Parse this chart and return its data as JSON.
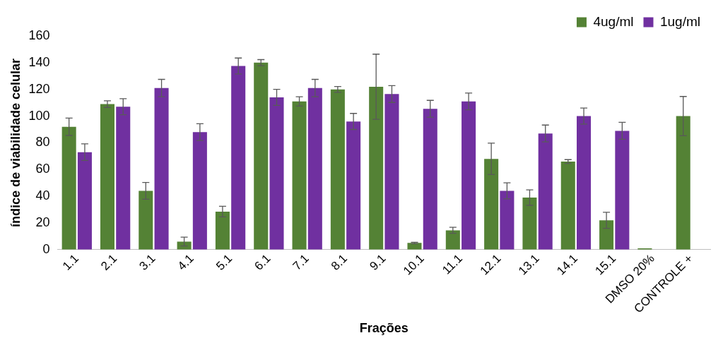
{
  "chart_data": {
    "type": "bar",
    "xlabel": "Frações",
    "ylabel": "índice de viabilidade celular",
    "categories": [
      "1.1",
      "2.1",
      "3.1",
      "4.1",
      "5.1",
      "6.1",
      "7.1",
      "8.1",
      "9.1",
      "10.1",
      "11.1",
      "12.1",
      "13.1",
      "14.1",
      "15.1",
      "DMSO 20%",
      "CONTROLE +"
    ],
    "series": [
      {
        "name": "4ug/ml",
        "color": "#548235",
        "values": [
          92,
          109,
          44,
          6,
          28.5,
          140,
          111,
          120,
          122,
          5,
          14.5,
          68,
          39,
          66,
          22,
          1,
          100
        ],
        "errors": [
          6.5,
          2.5,
          6.3,
          3.3,
          4,
          2.3,
          3.5,
          2.2,
          24.4,
          0.5,
          2.2,
          11.8,
          5.8,
          1.4,
          6,
          null,
          14.7
        ]
      },
      {
        "name": "1ug/ml",
        "color": "#7030a0",
        "values": [
          73,
          107,
          121,
          88,
          137.5,
          114,
          121,
          96,
          116.5,
          105.5,
          111,
          44,
          87,
          100,
          89,
          null,
          null
        ],
        "errors": [
          6.2,
          6,
          6.5,
          6.3,
          6,
          6,
          6.5,
          6,
          6.3,
          6.3,
          6.3,
          6,
          6.3,
          6,
          6.3,
          null,
          null
        ]
      }
    ],
    "ylim": [
      0,
      160
    ],
    "yticks": [
      0,
      20,
      40,
      60,
      80,
      100,
      120,
      140,
      160
    ],
    "grid": false,
    "legend": "top right"
  }
}
